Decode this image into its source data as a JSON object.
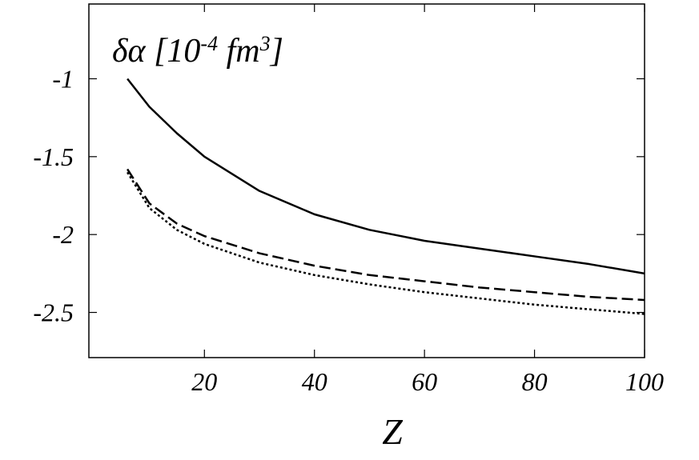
{
  "chart_data": {
    "type": "line",
    "ylabel": [
      "δα [10",
      "-4",
      " fm",
      "3",
      "]"
    ],
    "xlabel": "Z",
    "x": [
      6,
      10,
      15,
      20,
      30,
      40,
      50,
      60,
      70,
      80,
      90,
      100
    ],
    "series": [
      {
        "color": "#000000",
        "dash": "solid",
        "values": [
          -1.0,
          -1.18,
          -1.35,
          -1.5,
          -1.72,
          -1.87,
          -1.97,
          -2.04,
          -2.09,
          -2.14,
          -2.19,
          -2.25
        ]
      },
      {
        "color": "#000000",
        "dash": "dashed",
        "values": [
          -1.58,
          -1.8,
          -1.93,
          -2.01,
          -2.12,
          -2.2,
          -2.26,
          -2.3,
          -2.34,
          -2.37,
          -2.4,
          -2.42
        ]
      },
      {
        "color": "#000000",
        "dash": "dotted",
        "values": [
          -1.6,
          -1.83,
          -1.97,
          -2.06,
          -2.18,
          -2.26,
          -2.32,
          -2.37,
          -2.41,
          -2.45,
          -2.48,
          -2.51
        ]
      }
    ],
    "xlim": [
      -1,
      100
    ],
    "xticks": [
      20,
      40,
      60,
      80,
      100
    ],
    "ylim": [
      -2.79,
      -0.52
    ],
    "yticks": [
      -1,
      -1.5,
      -2,
      -2.5
    ]
  }
}
